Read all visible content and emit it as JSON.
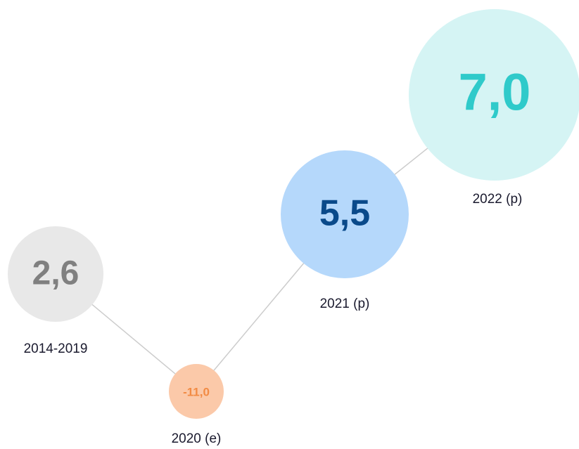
{
  "chart_data": {
    "type": "bubble",
    "categories": [
      "2014-2019",
      "2020 (e)",
      "2021 (p)",
      "2022 (p)"
    ],
    "values": [
      2.6,
      -11.0,
      5.5,
      7.0
    ],
    "value_labels": [
      "2,6",
      "-11,0",
      "5,5",
      "7,0"
    ],
    "colors": [
      "#e8e8e8",
      "#fbc9a9",
      "#b5d8fb",
      "#d5f4f4"
    ],
    "label_colors": [
      "#808080",
      "#f28b44",
      "#0a4a8a",
      "#2fcaca"
    ],
    "line_color": "#cccccc"
  }
}
